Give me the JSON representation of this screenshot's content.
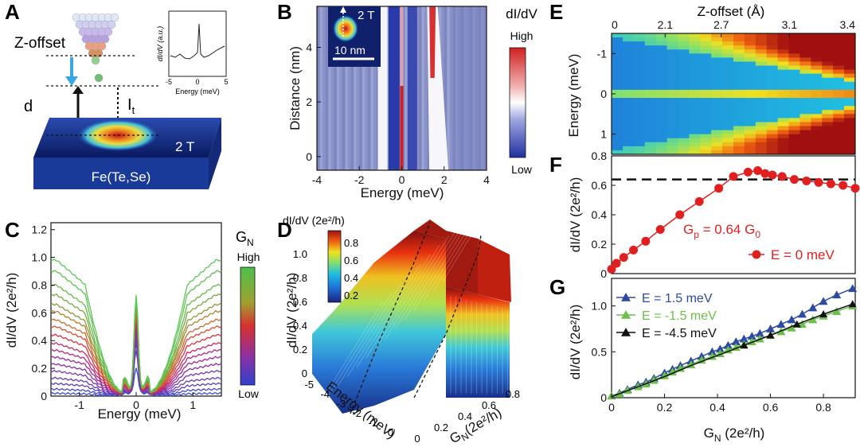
{
  "panels": {
    "A": {
      "letter": "A",
      "z_offset_label": "Z-offset",
      "d_label": "d",
      "it_label": "I",
      "it_sub": "t",
      "field_label": "2 T",
      "sample_label": "Fe(Te,Se)",
      "inset": {
        "ylabel": "dI/dV (a.u.)",
        "xlabel": "Energy (meV)",
        "xticks": [
          "-5",
          "0",
          "5"
        ]
      }
    },
    "B": {
      "letter": "B",
      "title": "dI/dV",
      "colorbar_high": "High",
      "colorbar_low": "Low",
      "inset_field": "2 T",
      "scale_bar": "10 nm",
      "xlabel": "Energy (meV)",
      "ylabel": "Distance (nm)",
      "xticks": [
        "-4",
        "-2",
        "0",
        "2",
        "4"
      ],
      "yticks": [
        "0",
        "2",
        "4"
      ]
    },
    "C": {
      "letter": "C",
      "legend_title": "G",
      "legend_sub": "N",
      "legend_high": "High",
      "legend_low": "Low",
      "xlabel": "Energy (meV)",
      "ylabel": "dI/dV (2e²/h)",
      "xticks": [
        "-1",
        "0",
        "1"
      ],
      "yticks": [
        "0",
        "0.2",
        "0.4",
        "0.6",
        "0.8",
        "1.0",
        "1.2"
      ]
    },
    "D": {
      "letter": "D",
      "colorbar_title": "dI/dV (2e²/h)",
      "colorbar_ticks": [
        "0.2",
        "0.4",
        "0.6",
        "0.8"
      ],
      "zticks": [
        "0",
        "0.2",
        "0.4",
        "0.6",
        "0.8",
        "1.0"
      ],
      "zlabel": "dI/dV (2e²/h)",
      "energy_ticks": [
        "-5",
        "-4",
        "-3",
        "-2",
        "-1",
        "0"
      ],
      "energy_label": "Energy (meV)",
      "gn_ticks": [
        "0",
        "0.2",
        "0.4",
        "0.6",
        "0.8"
      ],
      "gn_label": "G",
      "gn_label_sub": "N",
      "gn_label_tail": "(2e²/h)"
    },
    "E": {
      "letter": "E",
      "title": "Z-offset (Å)",
      "xticks": [
        "0",
        "2.1",
        "2.7",
        "3.1",
        "3.4"
      ],
      "yticks": [
        "-1",
        "0",
        "1"
      ],
      "ylabel": "Energy (meV)"
    },
    "F": {
      "letter": "F",
      "yticks": [
        "0",
        "0.2",
        "0.4",
        "0.6",
        "0.8"
      ],
      "ylabel": "dI/dV (2e²/h)",
      "gp_label": "G",
      "gp_sub": "p",
      "gp_tail": " = 0.64 G",
      "gp_sub0": "0",
      "legend": "E = 0 meV"
    },
    "G": {
      "letter": "G",
      "xticks": [
        "0",
        "0.2",
        "0.4",
        "0.6",
        "0.8"
      ],
      "yticks": [
        "0",
        "0.5",
        "1.0"
      ],
      "ylabel": "dI/dV (2e²/h)",
      "xlabel": "G",
      "xlabel_sub": "N",
      "xlabel_tail": " (2e²/h)",
      "legend": [
        "E =  1.5 meV",
        "E = -1.5 meV",
        "E = -4.5 meV"
      ]
    }
  },
  "chart_data": [
    {
      "panel": "C",
      "type": "line",
      "title": "",
      "xlabel": "Energy (meV)",
      "ylabel": "dI/dV (2e²/h)",
      "xlim": [
        -1.5,
        1.5
      ],
      "ylim": [
        0,
        1.25
      ],
      "series_count": 18,
      "plateau_values": [
        0.02,
        0.05,
        0.09,
        0.13,
        0.18,
        0.23,
        0.28,
        0.33,
        0.38,
        0.44,
        0.5,
        0.55,
        0.61,
        0.66,
        0.73,
        0.8,
        0.9,
        0.98
      ],
      "peak_value": 0.71,
      "colors": [
        "#3a4fd0",
        "#4a48c8",
        "#5a40c0",
        "#6a3ab8",
        "#7a34b0",
        "#8a2ea8",
        "#a02a98",
        "#b82880",
        "#cc2a60",
        "#d83040",
        "#d84a30",
        "#c86a30",
        "#b08030",
        "#909838",
        "#78a840",
        "#68b848",
        "#60c050",
        "#58c855"
      ]
    },
    {
      "panel": "F",
      "type": "scatter",
      "xlabel": "Z-offset (Å)",
      "ylabel": "dI/dV (2e²/h)",
      "ylim": [
        0,
        0.8
      ],
      "reference_line": 0.64,
      "series": [
        {
          "name": "E = 0 meV",
          "color": "#e02020",
          "x": [
            0.0,
            0.02,
            0.05,
            0.09,
            0.14,
            0.2,
            0.28,
            0.36,
            0.44,
            0.5,
            0.56,
            0.6,
            0.63,
            0.66,
            0.7,
            0.75,
            0.8,
            0.85,
            0.9,
            0.95,
            1.0
          ],
          "y": [
            0.03,
            0.07,
            0.11,
            0.16,
            0.22,
            0.3,
            0.4,
            0.49,
            0.58,
            0.66,
            0.69,
            0.7,
            0.68,
            0.67,
            0.66,
            0.64,
            0.63,
            0.62,
            0.61,
            0.6,
            0.58
          ]
        }
      ]
    },
    {
      "panel": "G",
      "type": "line",
      "xlabel": "G_N (2e²/h)",
      "ylabel": "dI/dV (2e²/h)",
      "xlim": [
        0,
        0.92
      ],
      "ylim": [
        0,
        1.3
      ],
      "series": [
        {
          "name": "E =  1.5 meV",
          "color": "#2b4aa0",
          "marker": "triangle",
          "x": [
            0.0,
            0.03,
            0.06,
            0.1,
            0.13,
            0.16,
            0.2,
            0.23,
            0.26,
            0.3,
            0.34,
            0.38,
            0.41,
            0.44,
            0.47,
            0.5,
            0.53,
            0.56,
            0.6,
            0.64,
            0.68,
            0.72,
            0.76,
            0.8,
            0.85,
            0.91
          ],
          "y": [
            0.02,
            0.05,
            0.09,
            0.14,
            0.17,
            0.21,
            0.27,
            0.31,
            0.35,
            0.4,
            0.45,
            0.5,
            0.53,
            0.57,
            0.61,
            0.64,
            0.67,
            0.7,
            0.75,
            0.8,
            0.85,
            0.91,
            0.98,
            1.05,
            1.12,
            1.19
          ]
        },
        {
          "name": "E = -1.5 meV",
          "color": "#6cc04a",
          "marker": "triangle",
          "x": [
            0.0,
            0.03,
            0.06,
            0.1,
            0.13,
            0.16,
            0.2,
            0.23,
            0.26,
            0.3,
            0.34,
            0.38,
            0.41,
            0.44,
            0.47,
            0.5,
            0.53,
            0.56,
            0.6,
            0.64,
            0.68,
            0.72,
            0.76,
            0.8,
            0.85,
            0.91
          ],
          "y": [
            0.02,
            0.04,
            0.08,
            0.12,
            0.15,
            0.19,
            0.24,
            0.28,
            0.32,
            0.36,
            0.41,
            0.45,
            0.48,
            0.52,
            0.55,
            0.58,
            0.61,
            0.64,
            0.68,
            0.72,
            0.76,
            0.8,
            0.85,
            0.89,
            0.94,
            1.0
          ]
        },
        {
          "name": "E = -4.5 meV",
          "color": "#111111",
          "marker": "triangle",
          "x": [
            0.0,
            0.1,
            0.2,
            0.3,
            0.4,
            0.5,
            0.6,
            0.7,
            0.8,
            0.91
          ],
          "y": [
            0.01,
            0.12,
            0.23,
            0.35,
            0.46,
            0.57,
            0.68,
            0.8,
            0.91,
            1.02
          ]
        }
      ]
    },
    {
      "panel": "E",
      "type": "heatmap",
      "title": "Z-offset (Å)",
      "ylabel": "Energy (meV)",
      "ylim": [
        -1.5,
        1.5
      ],
      "columns": 22
    },
    {
      "panel": "B",
      "type": "heatmap",
      "xlabel": "Energy (meV)",
      "ylabel": "Distance (nm)",
      "xlim": [
        -4,
        4
      ],
      "ylim": [
        -0.5,
        5.5
      ]
    }
  ]
}
